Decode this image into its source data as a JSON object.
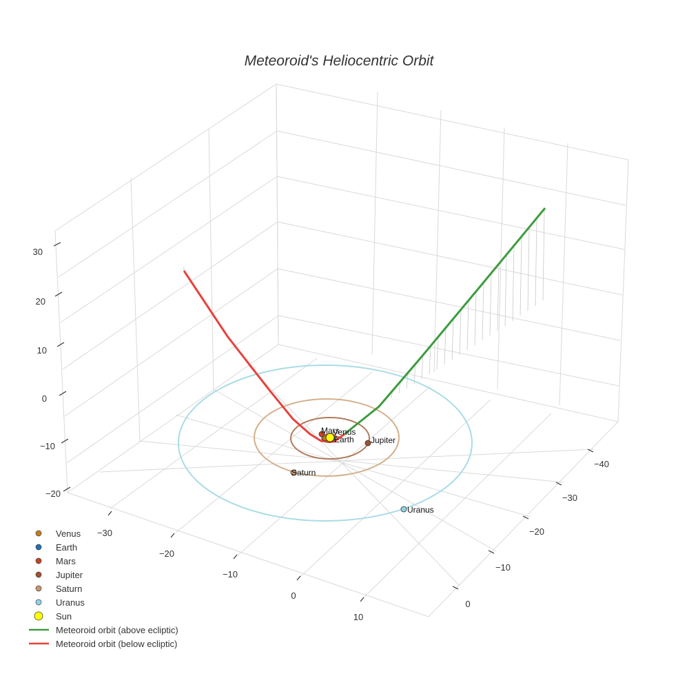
{
  "chart_data": {
    "type": "scatter3d",
    "title": "Meteoroid's Heliocentric Orbit",
    "axes": {
      "x": {
        "ticks": [
          -30,
          -20,
          -10,
          0,
          10
        ]
      },
      "y": {
        "ticks": [
          -40,
          -30,
          -20,
          -10,
          0
        ]
      },
      "z": {
        "ticks": [
          30,
          20,
          10,
          0,
          -10,
          -20
        ]
      }
    },
    "planets": [
      {
        "name": "Venus",
        "color": "#c77c1a"
      },
      {
        "name": "Earth",
        "color": "#1f6fb4"
      },
      {
        "name": "Mars",
        "color": "#c4441c"
      },
      {
        "name": "Jupiter",
        "color": "#a0522d",
        "orbit_color": "#b07a5a"
      },
      {
        "name": "Saturn",
        "color": "#c9956b",
        "orbit_color": "#d4b08c"
      },
      {
        "name": "Uranus",
        "color": "#8fd3e8",
        "orbit_color": "#a8dce6"
      }
    ],
    "sun": {
      "name": "Sun",
      "color": "#ffff00"
    },
    "orbit_segments": [
      {
        "name": "Meteoroid orbit (above ecliptic)",
        "color": "#3d9c3d"
      },
      {
        "name": "Meteoroid orbit (below ecliptic)",
        "color": "#e8413c"
      }
    ],
    "grid": true,
    "legend_position": "bottom-left"
  }
}
